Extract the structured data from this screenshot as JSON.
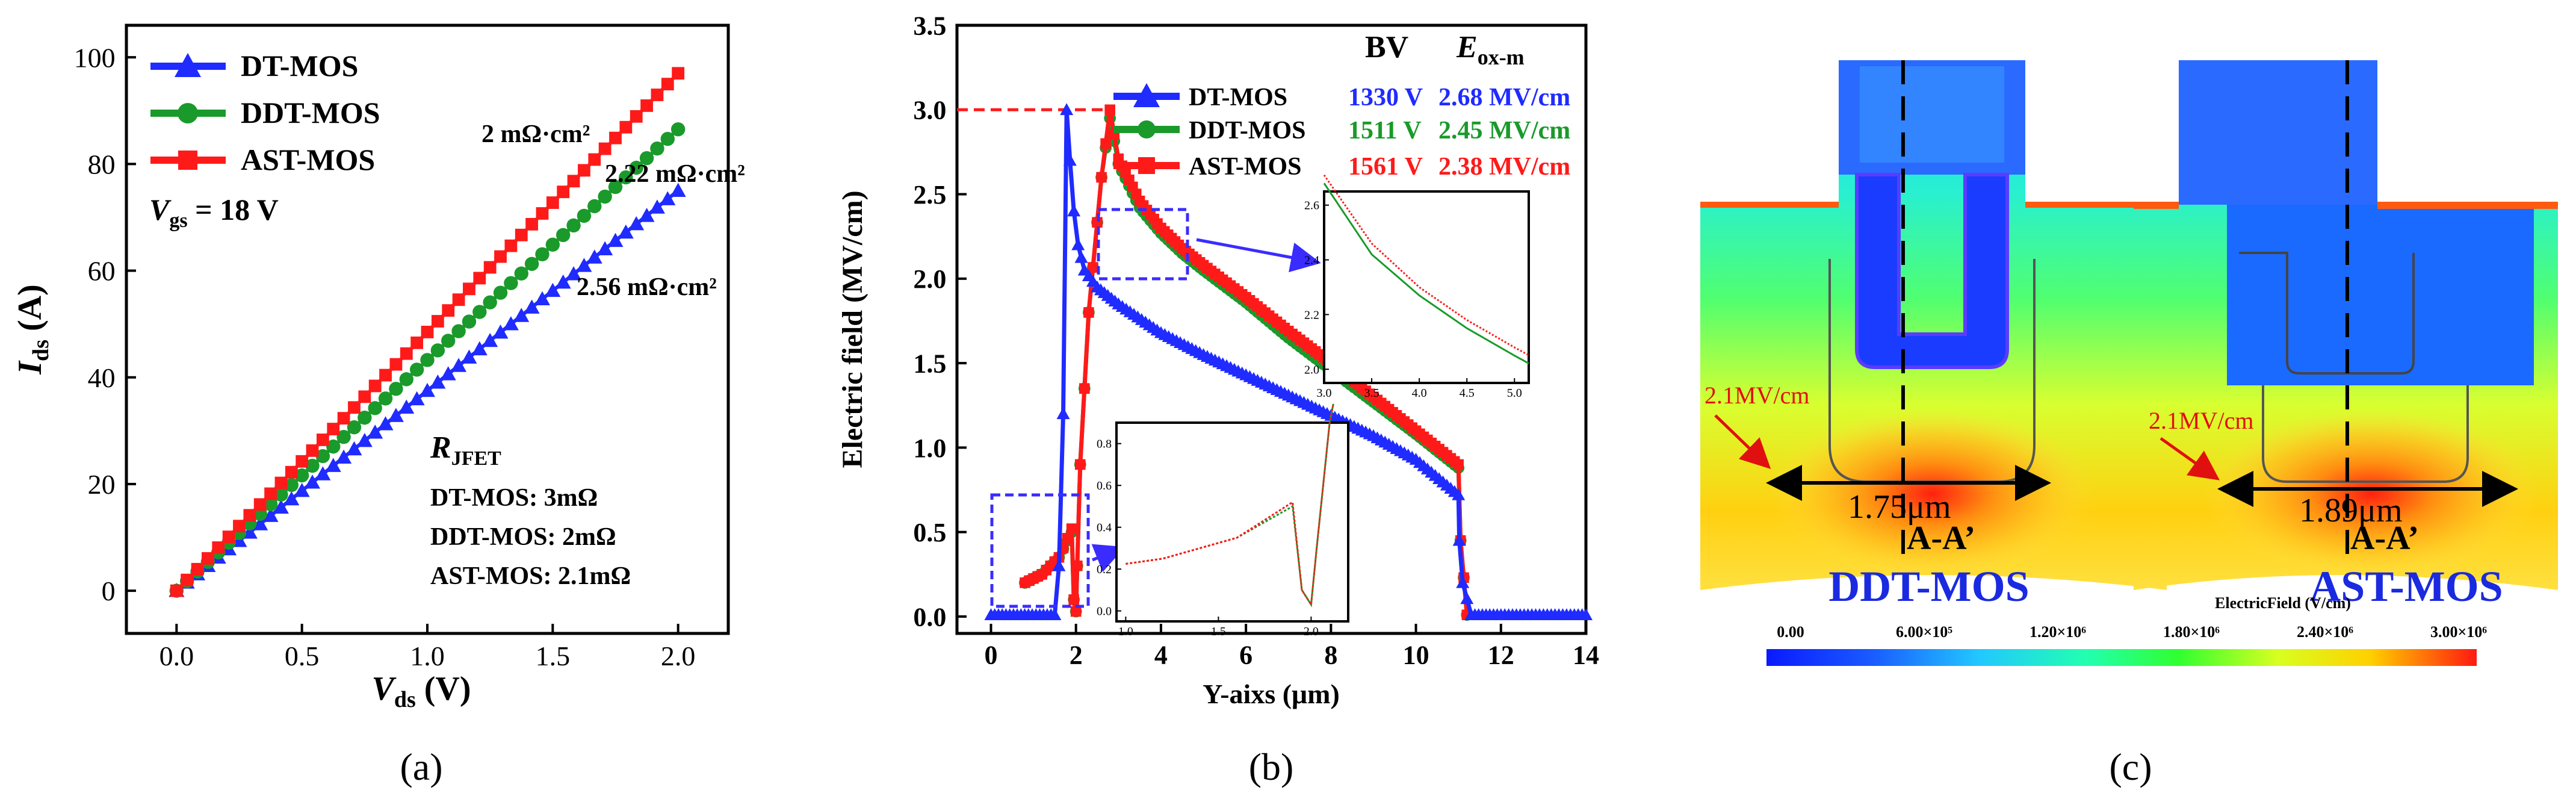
{
  "chart_data": [
    {
      "panel_label": "(a)",
      "type": "scatter",
      "xlabel_main": "V",
      "xlabel_sub": "ds",
      "xlabel_unit": " (V)",
      "ylabel_main": "I",
      "ylabel_sub": "ds",
      "ylabel_unit": " (A)",
      "xlim": [
        -0.2,
        2.2
      ],
      "ylim": [
        -8,
        106
      ],
      "xticks": [
        "0.0",
        "0.5",
        "1.0",
        "1.5",
        "2.0"
      ],
      "xtick_values": [
        0,
        0.5,
        1,
        1.5,
        2
      ],
      "yticks": [
        "0",
        "20",
        "40",
        "60",
        "80",
        "100"
      ],
      "ytick_values": [
        0,
        20,
        40,
        60,
        80,
        100
      ],
      "series": [
        {
          "name": "DT-MOS",
          "color": "#1f2bff",
          "marker": "triangle",
          "x": [
            0,
            2.0
          ],
          "y": [
            0,
            75
          ]
        },
        {
          "name": "DDT-MOS",
          "color": "#1a9a2a",
          "marker": "circle",
          "x": [
            0,
            2.0
          ],
          "y": [
            0,
            86.5
          ]
        },
        {
          "name": "AST-MOS",
          "color": "#ff1a1a",
          "marker": "square",
          "x": [
            0,
            2.0
          ],
          "y": [
            0,
            97
          ]
        }
      ],
      "annotations": {
        "r_ast": "2 mΩ·cm²",
        "r_ddt": "2.22 mΩ·cm²",
        "r_dt": "2.56 mΩ·cm²",
        "vgs_main": "V",
        "vgs_sub": "gs",
        "vgs_val": " = 18 V",
        "rjfet_main": "R",
        "rjfet_sub": "JFET",
        "rjfet_lines": [
          "DT-MOS: 3mΩ",
          "DDT-MOS: 2mΩ",
          "AST-MOS: 2.1mΩ"
        ]
      }
    },
    {
      "panel_label": "(b)",
      "type": "line",
      "xlabel": "Y-aixs (μm)",
      "ylabel": "Electric field (MV/cm)",
      "xlim": [
        -0.8,
        14
      ],
      "ylim": [
        -0.1,
        3.5
      ],
      "xticks": [
        "0",
        "2",
        "4",
        "6",
        "8",
        "10",
        "12",
        "14"
      ],
      "xtick_values": [
        0,
        2,
        4,
        6,
        8,
        10,
        12,
        14
      ],
      "yticks": [
        "0.0",
        "0.5",
        "1.0",
        "1.5",
        "2.0",
        "2.5",
        "3.0",
        "3.5"
      ],
      "ytick_values": [
        0,
        0.5,
        1,
        1.5,
        2,
        2.5,
        3,
        3.5
      ],
      "reference_line": {
        "y": 3.0,
        "x_end": 2.7,
        "color": "#ff1a1a"
      },
      "table_header": {
        "bv": "BV",
        "e_main": "E",
        "e_sub": "ox-m"
      },
      "series": [
        {
          "name": "DT-MOS",
          "bv": "1330 V",
          "eox": "2.68 MV/cm",
          "color": "#1f2bff",
          "marker": "triangle",
          "x": [
            0,
            1.5,
            1.6,
            1.7,
            1.78,
            1.86,
            1.95,
            2.05,
            2.2,
            2.5,
            3.0,
            4.0,
            5.0,
            6.0,
            7.0,
            8.0,
            9.0,
            10.0,
            11.0,
            11.02,
            11.1,
            11.3,
            12,
            13,
            14
          ],
          "y": [
            0.01,
            0.01,
            0.3,
            1.2,
            3.0,
            2.7,
            2.4,
            2.2,
            2.05,
            1.95,
            1.85,
            1.68,
            1.55,
            1.43,
            1.31,
            1.19,
            1.07,
            0.93,
            0.72,
            0.45,
            0.2,
            0.01,
            0.01,
            0.01,
            0.01
          ]
        },
        {
          "name": "DDT-MOS",
          "bv": "1511 V",
          "eox": "2.45 MV/cm",
          "color": "#1a9a2a",
          "marker": "circle",
          "x": [
            0.8,
            1.2,
            1.6,
            1.9,
            1.95,
            2.0,
            2.03,
            2.1,
            2.3,
            2.6,
            2.8,
            3.0,
            3.5,
            4.0,
            4.5,
            5.0,
            6.0,
            7.0,
            8.0,
            9.0,
            10.0,
            11.0,
            11.05,
            11.2
          ],
          "y": [
            0.2,
            0.25,
            0.35,
            0.5,
            0.1,
            0.03,
            0.3,
            0.9,
            1.8,
            2.6,
            2.95,
            2.68,
            2.42,
            2.27,
            2.15,
            2.05,
            1.86,
            1.65,
            1.46,
            1.27,
            1.08,
            0.88,
            0.45,
            0.01
          ]
        },
        {
          "name": "AST-MOS",
          "bv": "1561 V",
          "eox": "2.38 MV/cm",
          "color": "#ff1a1a",
          "marker": "square",
          "x": [
            0.8,
            1.2,
            1.6,
            1.9,
            1.95,
            2.0,
            2.03,
            2.1,
            2.3,
            2.6,
            2.8,
            3.0,
            3.5,
            4.0,
            4.5,
            5.0,
            6.0,
            7.0,
            8.0,
            9.0,
            10.0,
            11.0,
            11.05,
            11.2
          ],
          "y": [
            0.2,
            0.25,
            0.35,
            0.52,
            0.1,
            0.03,
            0.3,
            0.9,
            1.8,
            2.6,
            3.0,
            2.71,
            2.46,
            2.3,
            2.18,
            2.08,
            1.89,
            1.69,
            1.5,
            1.3,
            1.1,
            0.9,
            0.45,
            0.01
          ]
        }
      ],
      "inset_top": {
        "xticks": [
          "3.0",
          "3.5",
          "4.0",
          "4.5",
          "5.0"
        ],
        "xtick_values": [
          3.0,
          3.5,
          4.0,
          4.5,
          5.0
        ],
        "yticks": [
          "2.0",
          "2.2",
          "2.4",
          "2.6"
        ],
        "ytick_values": [
          2.0,
          2.2,
          2.4,
          2.6
        ],
        "xlim": [
          3.0,
          5.15
        ],
        "ylim": [
          1.95,
          2.65
        ]
      },
      "inset_bottom": {
        "xticks": [
          "1.0",
          "1.5",
          "2.0"
        ],
        "xtick_values": [
          1.0,
          1.5,
          2.0
        ],
        "yticks": [
          "0.0",
          "0.2",
          "0.4",
          "0.6",
          "0.8"
        ],
        "ytick_values": [
          0,
          0.2,
          0.4,
          0.6,
          0.8
        ],
        "xlim": [
          0.95,
          2.2
        ],
        "ylim": [
          -0.05,
          0.9
        ]
      }
    },
    {
      "panel_label": "(c)",
      "type": "heatmap",
      "left_label": "DDT-MOS",
      "right_label": "AST-MOS",
      "left_field": "2.1MV/cm",
      "right_field": "2.1MV/cm",
      "left_width": "1.75μm",
      "right_width": "1.89μm",
      "cut_label": "A-A’",
      "colorbar_title": "ElectricField (V/cm)",
      "colorbar_ticks": [
        "0.00",
        "6.00×10⁵",
        "1.20×10⁶",
        "1.80×10⁶",
        "2.40×10⁶",
        "3.00×10⁶"
      ],
      "colorbar_values": [
        0,
        600000,
        1200000,
        1800000,
        2400000,
        3000000
      ]
    }
  ]
}
